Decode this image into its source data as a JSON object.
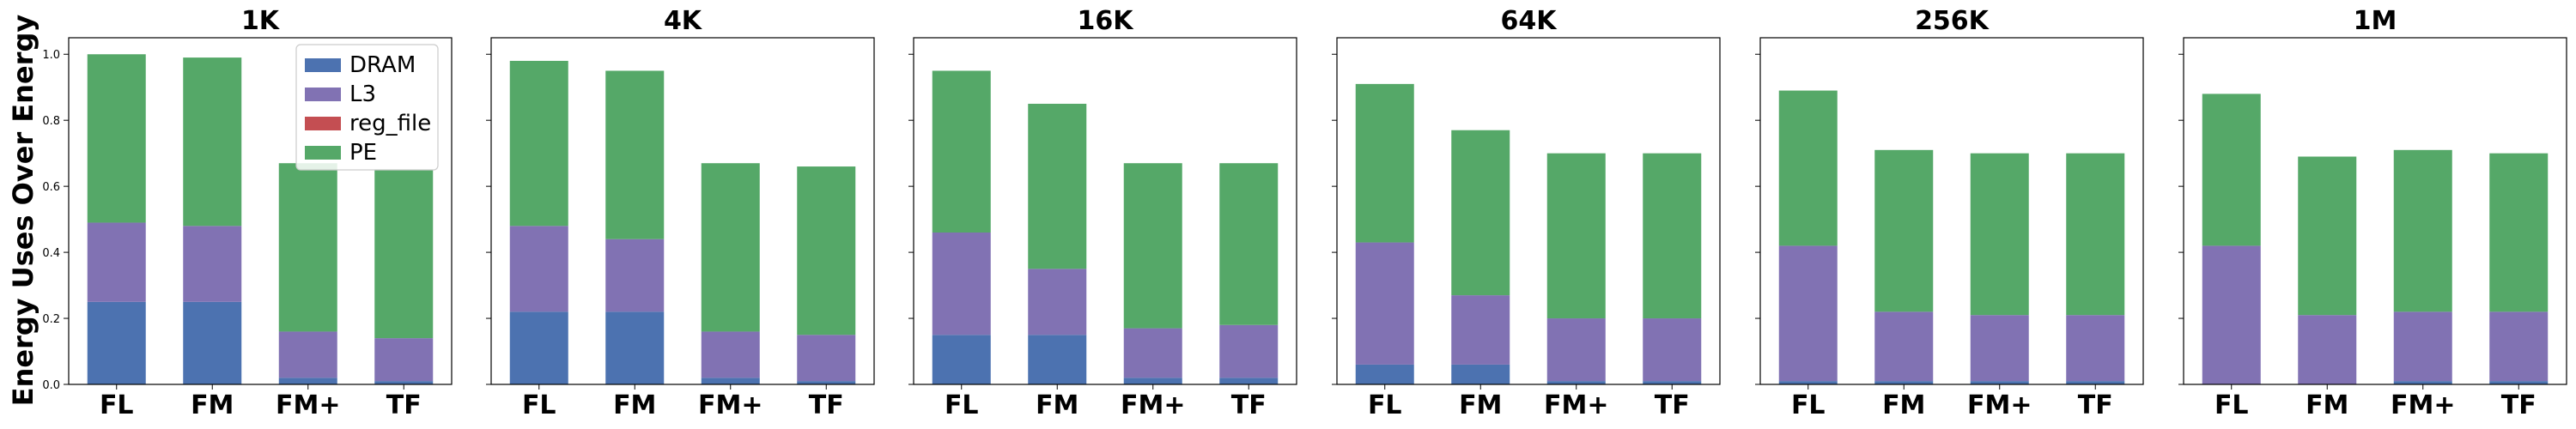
{
  "chart_data": {
    "type": "bar",
    "stacked": true,
    "ylabel": "Energy Uses Over Energy",
    "ylim": [
      0,
      1.05
    ],
    "yticks": [
      "0.0",
      "0.2",
      "0.4",
      "0.6",
      "0.8",
      "1.0"
    ],
    "categories": [
      "FL",
      "FM",
      "FM+",
      "TF"
    ],
    "colors": {
      "DRAM": "#4c72b0",
      "L3": "#8172b3",
      "reg_file": "#c44e52",
      "PE": "#55a868"
    },
    "legend": {
      "placement": "top-right of first panel",
      "entries": [
        "DRAM",
        "L3",
        "reg_file",
        "PE"
      ]
    },
    "panels": [
      {
        "title": "1K",
        "series": [
          {
            "name": "DRAM",
            "values": [
              0.25,
              0.25,
              0.02,
              0.01
            ]
          },
          {
            "name": "L3",
            "values": [
              0.24,
              0.23,
              0.14,
              0.13
            ]
          },
          {
            "name": "reg_file",
            "values": [
              0.0,
              0.0,
              0.0,
              0.0
            ]
          },
          {
            "name": "PE",
            "values": [
              0.51,
              0.51,
              0.51,
              0.51
            ]
          }
        ]
      },
      {
        "title": "4K",
        "series": [
          {
            "name": "DRAM",
            "values": [
              0.22,
              0.22,
              0.02,
              0.01
            ]
          },
          {
            "name": "L3",
            "values": [
              0.26,
              0.22,
              0.14,
              0.14
            ]
          },
          {
            "name": "reg_file",
            "values": [
              0.0,
              0.0,
              0.0,
              0.0
            ]
          },
          {
            "name": "PE",
            "values": [
              0.5,
              0.51,
              0.51,
              0.51
            ]
          }
        ]
      },
      {
        "title": "16K",
        "series": [
          {
            "name": "DRAM",
            "values": [
              0.15,
              0.15,
              0.02,
              0.02
            ]
          },
          {
            "name": "L3",
            "values": [
              0.31,
              0.2,
              0.15,
              0.16
            ]
          },
          {
            "name": "reg_file",
            "values": [
              0.0,
              0.0,
              0.0,
              0.0
            ]
          },
          {
            "name": "PE",
            "values": [
              0.49,
              0.5,
              0.5,
              0.49
            ]
          }
        ]
      },
      {
        "title": "64K",
        "series": [
          {
            "name": "DRAM",
            "values": [
              0.06,
              0.06,
              0.01,
              0.01
            ]
          },
          {
            "name": "L3",
            "values": [
              0.37,
              0.21,
              0.19,
              0.19
            ]
          },
          {
            "name": "reg_file",
            "values": [
              0.0,
              0.0,
              0.0,
              0.0
            ]
          },
          {
            "name": "PE",
            "values": [
              0.48,
              0.5,
              0.5,
              0.5
            ]
          }
        ]
      },
      {
        "title": "256K",
        "series": [
          {
            "name": "DRAM",
            "values": [
              0.01,
              0.01,
              0.01,
              0.01
            ]
          },
          {
            "name": "L3",
            "values": [
              0.41,
              0.21,
              0.2,
              0.2
            ]
          },
          {
            "name": "reg_file",
            "values": [
              0.0,
              0.0,
              0.0,
              0.0
            ]
          },
          {
            "name": "PE",
            "values": [
              0.47,
              0.49,
              0.49,
              0.49
            ]
          }
        ]
      },
      {
        "title": "1M",
        "series": [
          {
            "name": "DRAM",
            "values": [
              0.0,
              0.0,
              0.01,
              0.01
            ]
          },
          {
            "name": "L3",
            "values": [
              0.42,
              0.21,
              0.21,
              0.21
            ]
          },
          {
            "name": "reg_file",
            "values": [
              0.0,
              0.0,
              0.0,
              0.0
            ]
          },
          {
            "name": "PE",
            "values": [
              0.46,
              0.48,
              0.49,
              0.48
            ]
          }
        ]
      }
    ]
  }
}
